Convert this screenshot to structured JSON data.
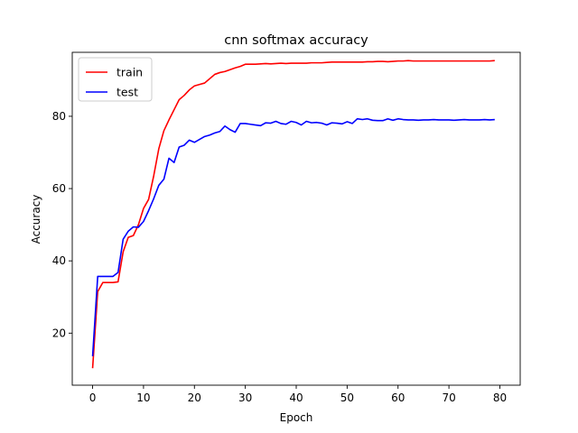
{
  "chart_data": {
    "type": "line",
    "title": "cnn softmax accuracy",
    "xlabel": "Epoch",
    "ylabel": "Accuracy",
    "xlim": [
      -4,
      84
    ],
    "ylim": [
      5.6,
      97.7
    ],
    "xticks": [
      0,
      10,
      20,
      30,
      40,
      50,
      60,
      70,
      80
    ],
    "yticks": [
      20,
      40,
      60,
      80
    ],
    "grid": false,
    "legend": {
      "position": "top-left"
    },
    "x": [
      0,
      1,
      2,
      3,
      4,
      5,
      6,
      7,
      8,
      9,
      10,
      11,
      12,
      13,
      14,
      15,
      16,
      17,
      18,
      19,
      20,
      21,
      22,
      23,
      24,
      25,
      26,
      27,
      28,
      29,
      30,
      31,
      32,
      33,
      34,
      35,
      36,
      37,
      38,
      39,
      40,
      41,
      42,
      43,
      44,
      45,
      46,
      47,
      48,
      49,
      50,
      51,
      52,
      53,
      54,
      55,
      56,
      57,
      58,
      59,
      60,
      61,
      62,
      63,
      64,
      65,
      66,
      67,
      68,
      69,
      70,
      71,
      72,
      73,
      74,
      75,
      76,
      77,
      78,
      79
    ],
    "series": [
      {
        "name": "train",
        "color": "#ff0000",
        "values": [
          10.3,
          31.5,
          34.0,
          34.0,
          34.0,
          34.2,
          42.5,
          46.5,
          47.0,
          50.0,
          54.5,
          57.0,
          63.5,
          71.0,
          76.0,
          79.0,
          81.8,
          84.6,
          85.8,
          87.3,
          88.4,
          88.8,
          89.2,
          90.4,
          91.6,
          92.1,
          92.4,
          92.9,
          93.4,
          93.8,
          94.4,
          94.4,
          94.4,
          94.5,
          94.6,
          94.5,
          94.6,
          94.7,
          94.6,
          94.7,
          94.7,
          94.7,
          94.7,
          94.8,
          94.8,
          94.8,
          94.9,
          95.0,
          95.0,
          95.0,
          95.0,
          95.0,
          95.0,
          95.0,
          95.1,
          95.1,
          95.2,
          95.2,
          95.1,
          95.2,
          95.3,
          95.3,
          95.4,
          95.3,
          95.3,
          95.3,
          95.3,
          95.3,
          95.3,
          95.3,
          95.3,
          95.3,
          95.3,
          95.3,
          95.3,
          95.3,
          95.3,
          95.3,
          95.3,
          95.4
        ]
      },
      {
        "name": "test",
        "color": "#0000ff",
        "values": [
          13.6,
          35.7,
          35.7,
          35.7,
          35.7,
          36.8,
          46.0,
          48.2,
          49.4,
          49.3,
          50.9,
          53.9,
          57.2,
          60.9,
          62.6,
          68.4,
          67.2,
          71.5,
          72.0,
          73.4,
          72.8,
          73.6,
          74.4,
          74.8,
          75.4,
          75.8,
          77.3,
          76.3,
          75.6,
          78.0,
          78.0,
          77.8,
          77.6,
          77.4,
          78.2,
          78.1,
          78.6,
          78.0,
          77.8,
          78.6,
          78.3,
          77.6,
          78.6,
          78.2,
          78.3,
          78.1,
          77.6,
          78.2,
          78.1,
          77.9,
          78.5,
          78.0,
          79.3,
          79.1,
          79.3,
          78.9,
          78.8,
          78.8,
          79.3,
          78.9,
          79.3,
          79.1,
          79.0,
          79.0,
          78.9,
          79.0,
          79.0,
          79.1,
          79.0,
          79.0,
          79.0,
          78.9,
          79.0,
          79.1,
          79.0,
          79.0,
          79.0,
          79.1,
          79.0,
          79.1
        ]
      }
    ]
  }
}
